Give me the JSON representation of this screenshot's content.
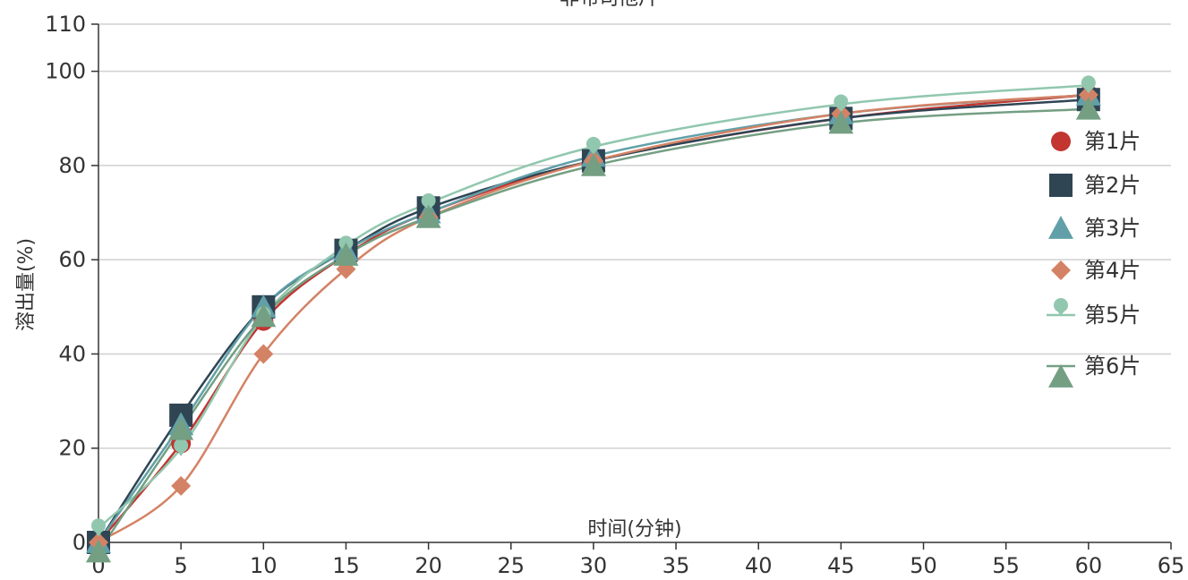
{
  "chart_data": {
    "type": "line",
    "title": "非布司他片",
    "xlabel": "时间(分钟)",
    "ylabel": "溶出量(%)",
    "xlim": [
      0,
      65
    ],
    "ylim": [
      0,
      110
    ],
    "xticks": [
      0,
      5,
      10,
      15,
      20,
      25,
      30,
      35,
      40,
      45,
      50,
      55,
      60,
      65
    ],
    "yticks": [
      0,
      20,
      40,
      60,
      80,
      100,
      110
    ],
    "grid": "horizontal",
    "legend_position": "right",
    "x": [
      0,
      5,
      10,
      15,
      20,
      30,
      45,
      60
    ],
    "series": [
      {
        "name": "第1片",
        "marker": "circle",
        "color": "#c23531",
        "values": [
          0,
          21,
          47,
          61,
          70,
          81,
          90,
          95
        ]
      },
      {
        "name": "第2片",
        "marker": "square",
        "color": "#2f4554",
        "values": [
          0,
          27,
          50,
          62,
          71,
          81,
          90,
          94
        ]
      },
      {
        "name": "第3片",
        "marker": "triangle",
        "color": "#61a0a8",
        "values": [
          0,
          25,
          50,
          62,
          70,
          82,
          91,
          95
        ]
      },
      {
        "name": "第4片",
        "marker": "diamond",
        "color": "#d48265",
        "values": [
          0,
          12,
          40,
          58,
          69,
          81,
          91,
          95
        ]
      },
      {
        "name": "第5片",
        "marker": "pin",
        "color": "#91c7ae",
        "values": [
          3,
          20,
          48,
          63,
          72,
          84,
          93,
          97
        ]
      },
      {
        "name": "第6片",
        "marker": "triangle",
        "color": "#749f83",
        "values": [
          -2,
          24,
          48,
          61,
          69,
          80,
          89,
          92
        ]
      }
    ]
  }
}
